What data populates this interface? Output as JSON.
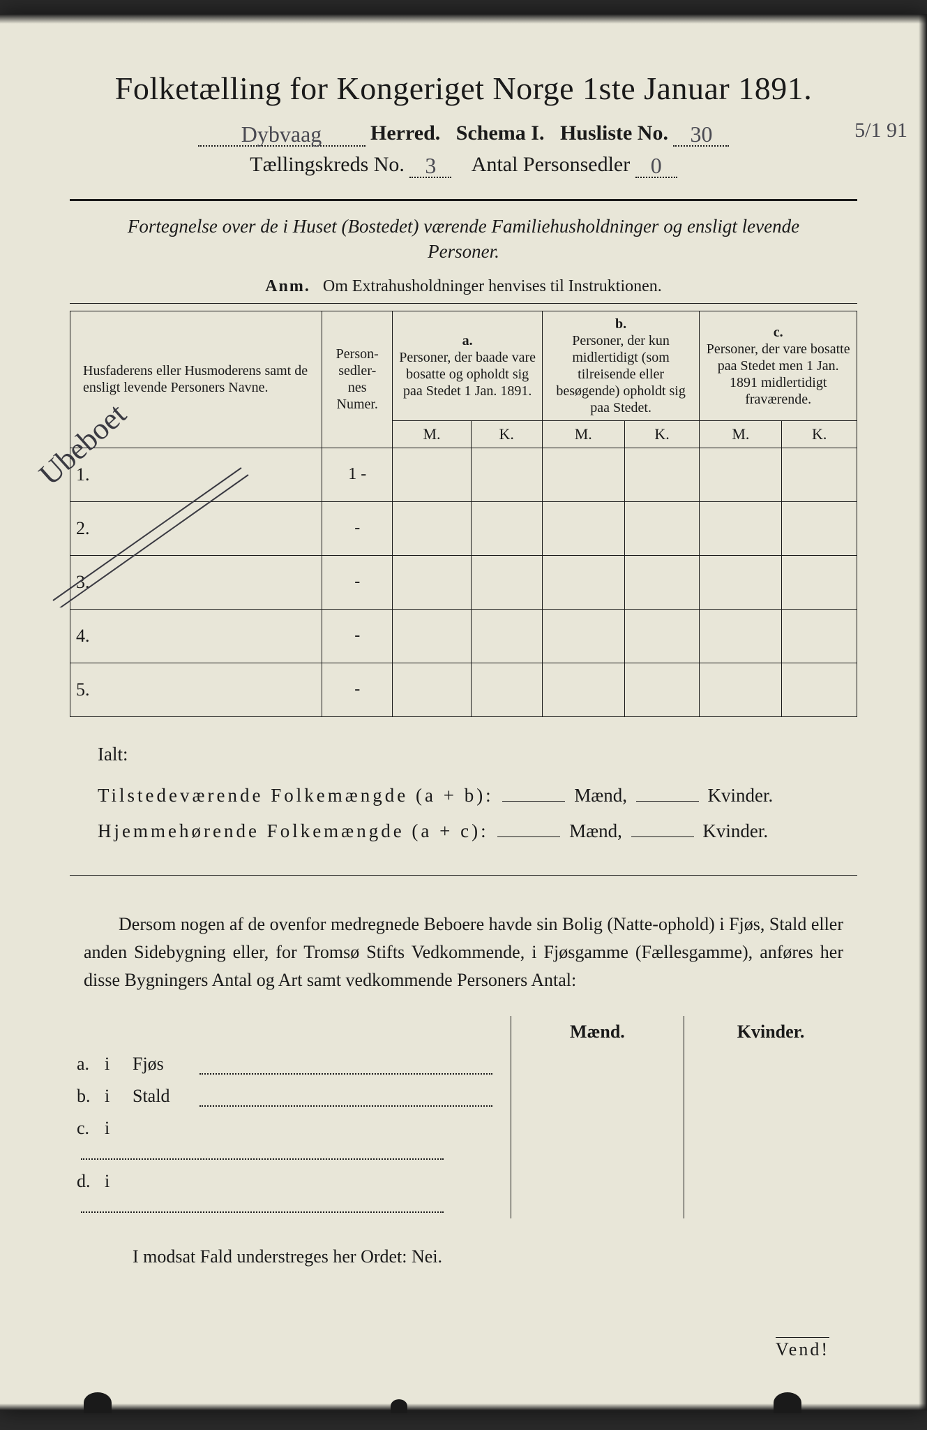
{
  "page": {
    "title": "Folketælling for Kongeriget Norge 1ste Januar 1891.",
    "herred_hw": "Dybvaag",
    "herred_label": "Herred.",
    "schema": "Schema I.",
    "husliste_label": "Husliste No.",
    "husliste_no": "30",
    "margin_date": "5/1 91",
    "kreds_label": "Tællingskreds No.",
    "kreds_no": "3",
    "antal_label": "Antal Personsedler",
    "antal_no": "0",
    "fortegnelse": "Fortegnelse over de i Huset (Bostedet) værende Familiehusholdninger og ensligt levende Personer.",
    "anm_label": "Anm.",
    "anm_text": "Om Extrahusholdninger henvises til Instruktionen.",
    "diag_hw": "Ubeboet"
  },
  "table": {
    "col1": "Husfaderens eller Husmoderens samt de ensligt levende Personers Navne.",
    "col2": "Person-\nsedler-\nnes\nNumer.",
    "a": "a.",
    "a_text": "Personer, der baade vare bosatte og opholdt sig paa Stedet 1 Jan. 1891.",
    "b": "b.",
    "b_text": "Personer, der kun midlertidigt (som tilreisende eller besøgende) opholdt sig paa Stedet.",
    "c": "c.",
    "c_text": "Personer, der vare bosatte paa Stedet men 1 Jan. 1891 midlertidigt fraværende.",
    "M": "M.",
    "K": "K.",
    "rows": [
      {
        "n": "1.",
        "ps": "1 -"
      },
      {
        "n": "2.",
        "ps": "-"
      },
      {
        "n": "3.",
        "ps": "-"
      },
      {
        "n": "4.",
        "ps": "-"
      },
      {
        "n": "5.",
        "ps": "-"
      }
    ]
  },
  "totals": {
    "ialt": "Ialt:",
    "tilst": "Tilstedeværende Folkemængde (a + b):",
    "hjem": "Hjemmehørende Folkemængde (a + c):",
    "maend": "Mænd,",
    "kvinder": "Kvinder."
  },
  "para": "Dersom nogen af de ovenfor medregnede Beboere havde sin Bolig (Natte-ophold) i Fjøs, Stald eller anden Sidebygning eller, for Tromsø Stifts Vedkommende, i Fjøsgamme (Fællesgamme), anføres her disse Bygningers Antal og Art samt vedkommende Personers Antal:",
  "side": {
    "maend": "Mænd.",
    "kvinder": "Kvinder.",
    "rows": [
      {
        "l": "a.",
        "i": "i",
        "t": "Fjøs"
      },
      {
        "l": "b.",
        "i": "i",
        "t": "Stald"
      },
      {
        "l": "c.",
        "i": "i",
        "t": ""
      },
      {
        "l": "d.",
        "i": "i",
        "t": ""
      }
    ]
  },
  "modsat": "I modsat Fald understreges her Ordet: Nei.",
  "vend": "Vend!",
  "style": {
    "bg": "#e8e6d8",
    "ink": "#1a1a1a",
    "hw_color": "#4a4a52",
    "title_size": 46,
    "body_size": 26,
    "small_size": 20,
    "border_w": 1.5,
    "thick_rule": 3
  }
}
